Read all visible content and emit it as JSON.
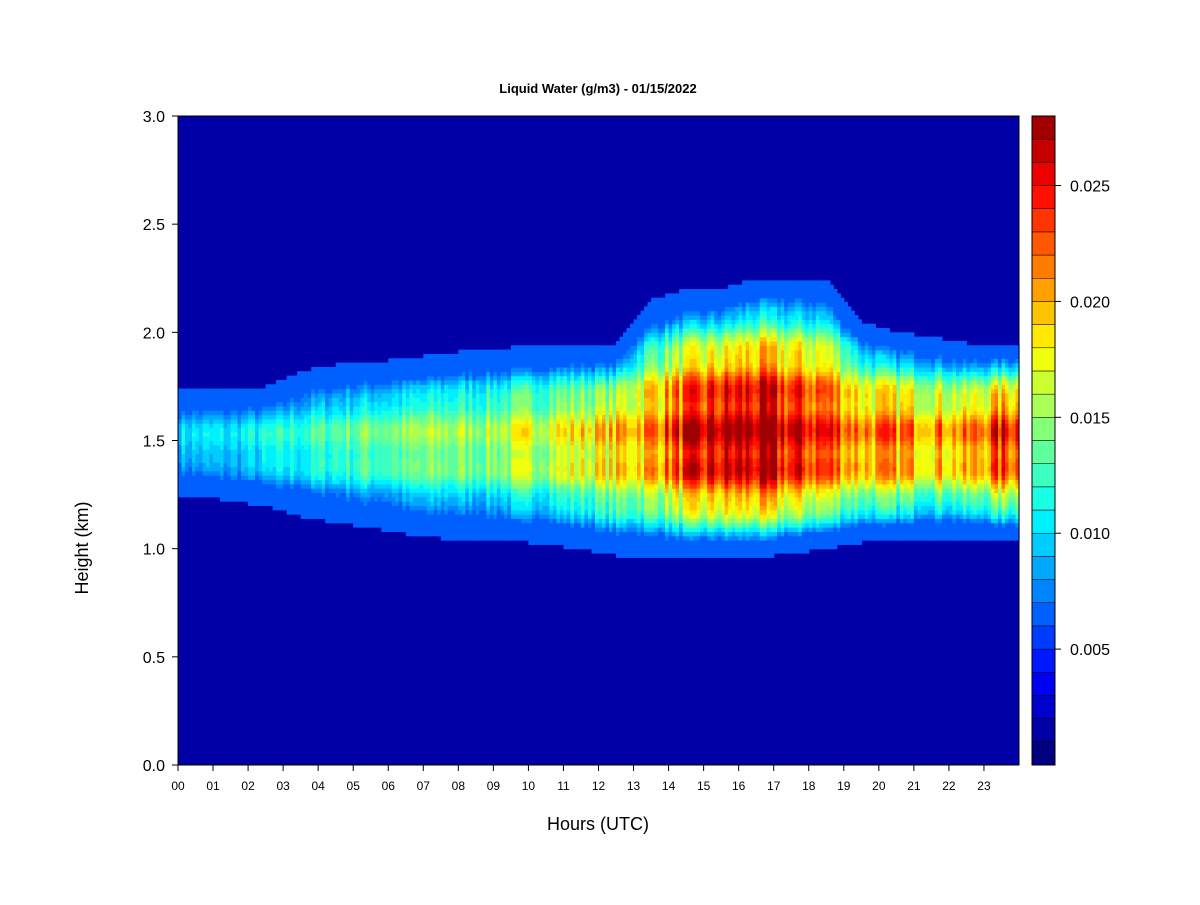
{
  "chart_data": {
    "type": "heatmap",
    "title": "Liquid Water (g/m3) - 01/15/2022",
    "xlabel": "Hours (UTC)",
    "ylabel": "Height (km)",
    "x_ticks": [
      "00",
      "01",
      "02",
      "03",
      "04",
      "05",
      "06",
      "07",
      "08",
      "09",
      "10",
      "11",
      "12",
      "13",
      "14",
      "15",
      "16",
      "17",
      "18",
      "19",
      "20",
      "21",
      "22",
      "23"
    ],
    "xlim": [
      0,
      24
    ],
    "y_ticks": [
      "0.0",
      "0.5",
      "1.0",
      "1.5",
      "2.0",
      "2.5",
      "3.0"
    ],
    "ylim": [
      0,
      3.0
    ],
    "colorbar": {
      "min": 0.0,
      "max": 0.028,
      "step": 0.001,
      "ticks": [
        "0.005",
        "0.010",
        "0.015",
        "0.020",
        "0.025"
      ],
      "tick_values": [
        0.005,
        0.01,
        0.015,
        0.02,
        0.025
      ],
      "colors": [
        "#000080",
        "#0000a6",
        "#0000cc",
        "#0000f2",
        "#0018ff",
        "#003cff",
        "#0060ff",
        "#0084ff",
        "#00a8ff",
        "#00ccff",
        "#00f0ff",
        "#18ffe6",
        "#3cffc2",
        "#60ff9e",
        "#84ff7a",
        "#a8ff56",
        "#ccff32",
        "#f0ff0e",
        "#ffea00",
        "#ffc400",
        "#ffa000",
        "#ff7c00",
        "#ff5800",
        "#ff3400",
        "#ff1000",
        "#ec0000",
        "#c60000",
        "#a00000"
      ]
    },
    "background_value": 0.001,
    "grid": false,
    "cloud_layer": {
      "base_km": [
        1.25,
        1.22,
        1.2,
        1.15,
        1.12,
        1.1,
        1.07,
        1.05,
        1.05,
        1.04,
        1.02,
        1.0,
        0.97,
        0.96,
        0.96,
        0.96,
        0.96,
        0.98,
        1.0,
        1.03,
        1.04,
        1.05,
        1.05,
        1.04
      ],
      "top_km": [
        1.75,
        1.75,
        1.75,
        1.82,
        1.85,
        1.86,
        1.88,
        1.9,
        1.92,
        1.93,
        1.95,
        1.95,
        1.95,
        2.15,
        2.2,
        2.2,
        2.25,
        2.25,
        2.25,
        2.05,
        2.0,
        1.98,
        1.95,
        1.95
      ],
      "peak_height_km": [
        1.5,
        1.5,
        1.5,
        1.5,
        1.5,
        1.5,
        1.5,
        1.5,
        1.5,
        1.5,
        1.5,
        1.5,
        1.5,
        1.5,
        1.5,
        1.5,
        1.5,
        1.5,
        1.5,
        1.5,
        1.5,
        1.5,
        1.5,
        1.5
      ],
      "peak_value": [
        0.01,
        0.01,
        0.011,
        0.012,
        0.013,
        0.014,
        0.014,
        0.015,
        0.015,
        0.016,
        0.017,
        0.018,
        0.019,
        0.021,
        0.024,
        0.026,
        0.027,
        0.025,
        0.024,
        0.021,
        0.021,
        0.021,
        0.02,
        0.024
      ]
    }
  }
}
